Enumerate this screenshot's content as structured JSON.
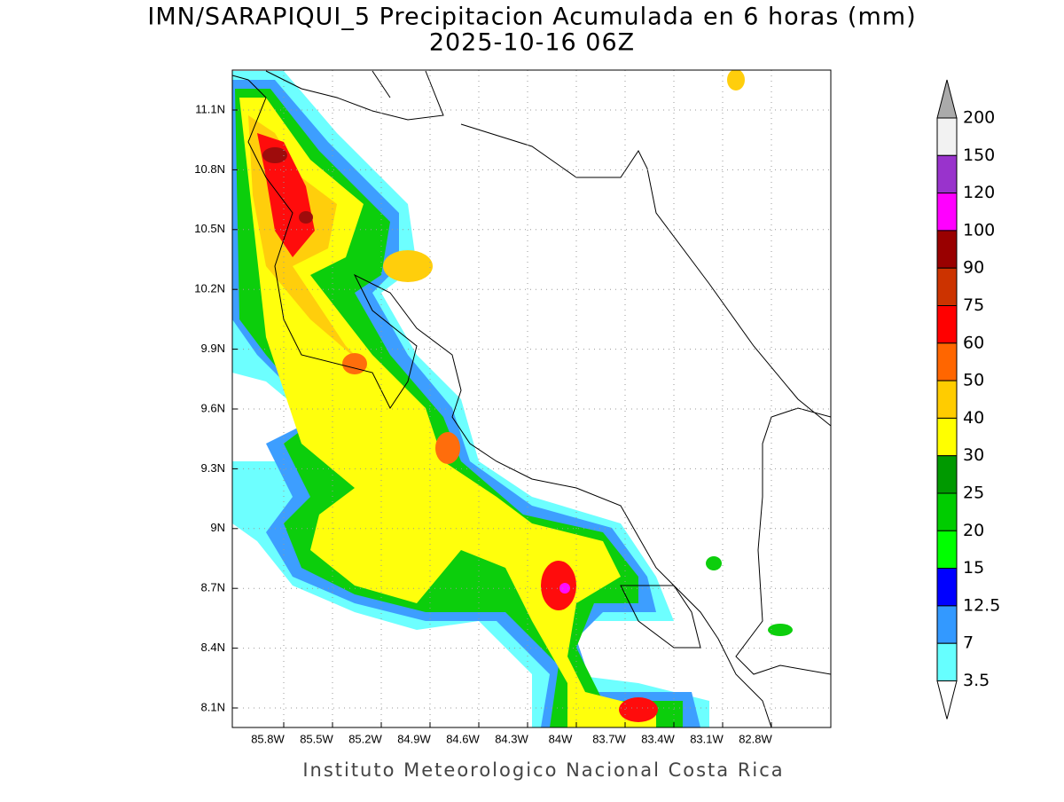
{
  "map": {
    "title": "IMN/SARAPIQUI_5 Precipitacion Acumulada en 6 horas (mm)",
    "subtitle": "2025-10-16 06Z",
    "lat_labels": [
      "11.1N",
      "10.8N",
      "10.5N",
      "10.2N",
      "9.9N",
      "9.6N",
      "9.3N",
      "9N",
      "8.7N",
      "8.4N",
      "8.1N"
    ],
    "lon_labels": [
      "85.8W",
      "85.5W",
      "85.2W",
      "84.9W",
      "84.6W",
      "84.3W",
      "84W",
      "83.7W",
      "83.4W",
      "83.1W",
      "82.8W"
    ],
    "colorbar": {
      "labels": [
        "200",
        "150",
        "120",
        "100",
        "90",
        "75",
        "60",
        "50",
        "40",
        "30",
        "25",
        "20",
        "15",
        "12.5",
        "7",
        "3.5"
      ],
      "colors": [
        "#f2f2f2",
        "#9933cc",
        "#ff00ff",
        "#990000",
        "#cc3300",
        "#ff0000",
        "#ff6600",
        "#ffcc00",
        "#ffff00",
        "#009900",
        "#00cc00",
        "#00ff00",
        "#0000ff",
        "#3399ff",
        "#66ffff"
      ],
      "over_color": "#aaaaaa",
      "under_color": "#ffffff"
    },
    "footer": "Instituto Meteorologico Nacional Costa Rica"
  }
}
